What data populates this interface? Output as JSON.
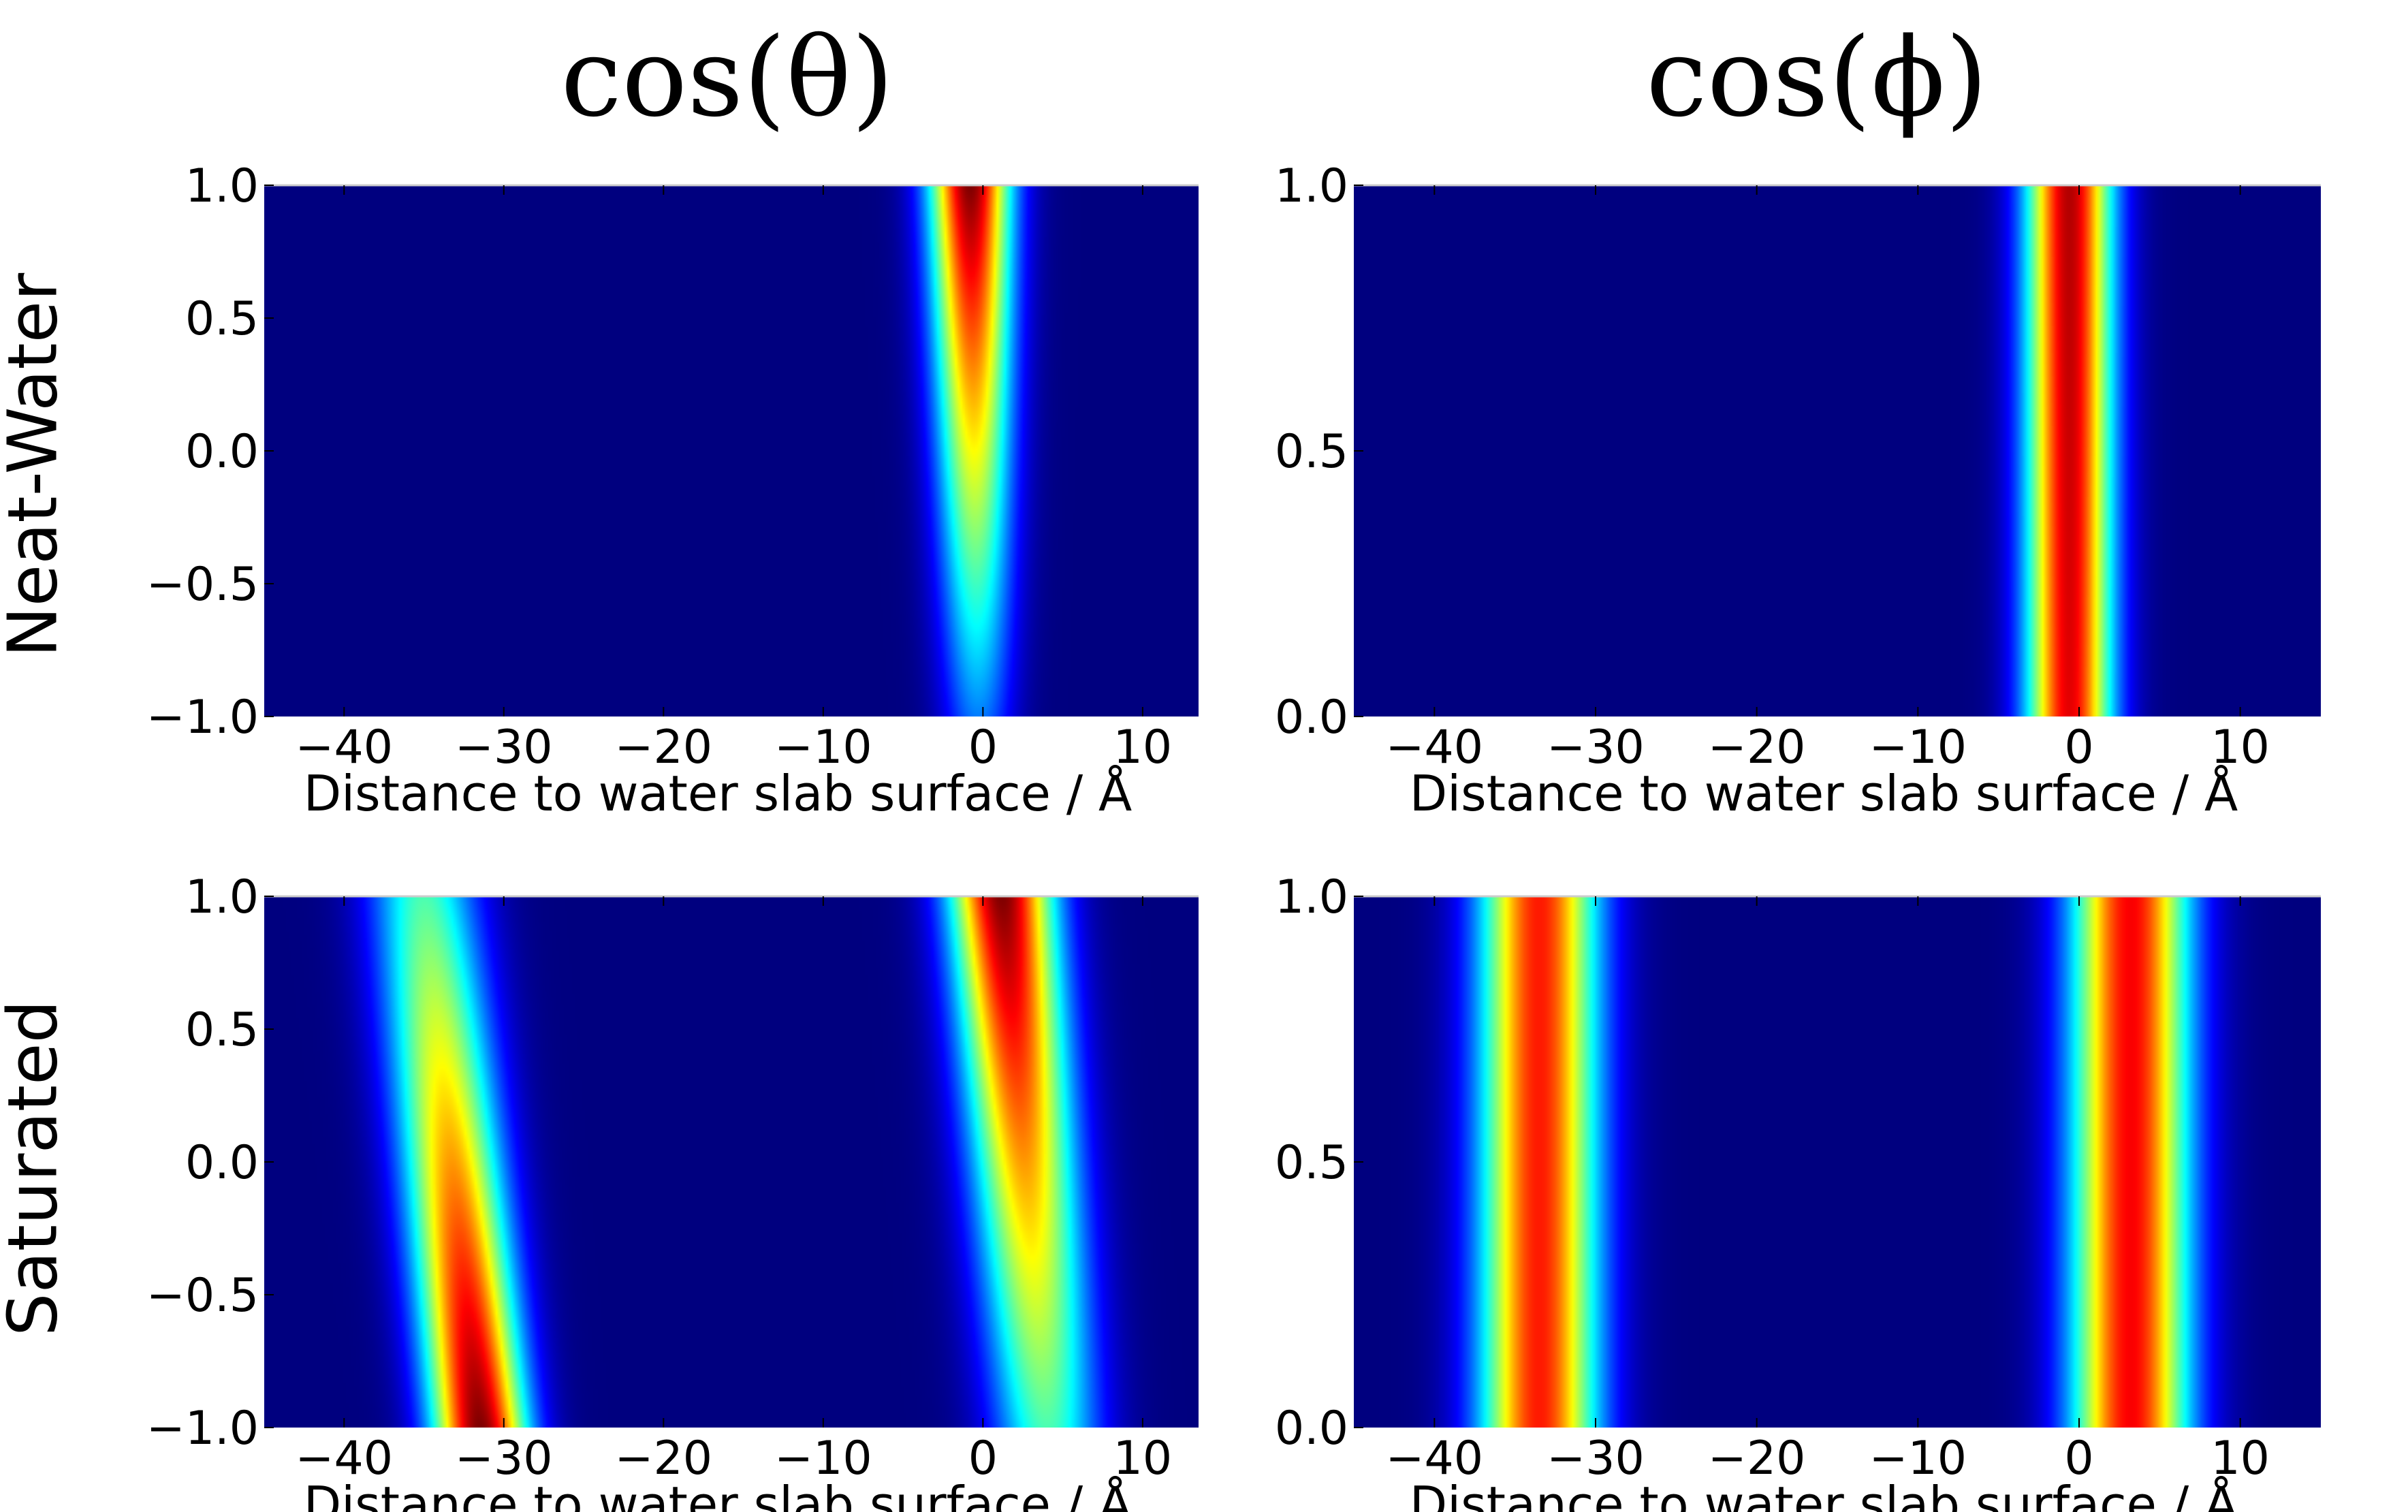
{
  "column_titles": [
    "cos(θ)",
    "cos(ϕ)"
  ],
  "row_labels": [
    "Neat-Water",
    "Saturated"
  ],
  "colormap": [
    "#00007f",
    "#0000ff",
    "#007fff",
    "#00ffff",
    "#7fff7f",
    "#ffff00",
    "#ff7f00",
    "#ff0000",
    "#7f0000"
  ],
  "chart_data": [
    {
      "type": "heatmap",
      "name": "neat-water-cos-theta",
      "xlabel": "Distance to water slab surface / Å",
      "ylabel": "",
      "xlim": [
        -45,
        13.5
      ],
      "ylim": [
        -1.0,
        1.0
      ],
      "xticks": [
        -40,
        -30,
        -20,
        -10,
        0,
        10
      ],
      "yticks": [
        -1.0,
        -0.5,
        0.0,
        0.5,
        1.0
      ],
      "xtick_labels": [
        "−40",
        "−30",
        "−20",
        "−10",
        "0",
        "10"
      ],
      "ytick_labels": [
        "−1.0",
        "−0.5",
        "0.0",
        "0.5",
        "1.0"
      ],
      "features": [
        {
          "x_center_top": -0.8,
          "x_center_bottom": -0.3,
          "width_top": 1.8,
          "width_bottom": 1.6,
          "intensity_top": 1.0,
          "intensity_bottom": 0.25
        }
      ]
    },
    {
      "type": "heatmap",
      "name": "neat-water-cos-phi",
      "xlabel": "Distance to water slab surface / Å",
      "ylabel": "",
      "xlim": [
        -45,
        15
      ],
      "ylim": [
        0.0,
        1.0
      ],
      "xticks": [
        -40,
        -30,
        -20,
        -10,
        0,
        10
      ],
      "yticks": [
        0.0,
        0.5,
        1.0
      ],
      "xtick_labels": [
        "−40",
        "−30",
        "−20",
        "−10",
        "0",
        "10"
      ],
      "ytick_labels": [
        "0.0",
        "0.5",
        "1.0"
      ],
      "features": [
        {
          "x_center_top": -0.6,
          "x_center_bottom": -0.6,
          "width_top": 1.9,
          "width_bottom": 1.9,
          "intensity_top": 0.95,
          "intensity_bottom": 0.9
        }
      ]
    },
    {
      "type": "heatmap",
      "name": "saturated-cos-theta",
      "xlabel": "Distance to water slab surface / Å",
      "ylabel": "",
      "xlim": [
        -45,
        13.5
      ],
      "ylim": [
        -1.0,
        1.0
      ],
      "xticks": [
        -40,
        -30,
        -20,
        -10,
        0,
        10
      ],
      "yticks": [
        -1.0,
        -0.5,
        0.0,
        0.5,
        1.0
      ],
      "xtick_labels": [
        "−40",
        "−30",
        "−20",
        "−10",
        "0",
        "10"
      ],
      "ytick_labels": [
        "−1.0",
        "−0.5",
        "0.0",
        "0.5",
        "1.0"
      ],
      "features": [
        {
          "x_center_top": -35.0,
          "x_center_bottom": -31.5,
          "width_top": 2.4,
          "width_bottom": 2.1,
          "intensity_top": 0.45,
          "intensity_bottom": 1.0
        },
        {
          "x_center_top": 1.2,
          "x_center_bottom": 4.0,
          "width_top": 2.3,
          "width_bottom": 2.4,
          "intensity_top": 1.0,
          "intensity_bottom": 0.45
        }
      ]
    },
    {
      "type": "heatmap",
      "name": "saturated-cos-phi",
      "xlabel": "Distance to water slab surface / Å",
      "ylabel": "",
      "xlim": [
        -45,
        15
      ],
      "ylim": [
        0.0,
        1.0
      ],
      "xticks": [
        -40,
        -30,
        -20,
        -10,
        0,
        10
      ],
      "yticks": [
        0.0,
        0.5,
        1.0
      ],
      "xtick_labels": [
        "−40",
        "−30",
        "−20",
        "−10",
        "0",
        "10"
      ],
      "ytick_labels": [
        "0.0",
        "0.5",
        "1.0"
      ],
      "features": [
        {
          "x_center_top": -33.5,
          "x_center_bottom": -33.5,
          "width_top": 2.6,
          "width_bottom": 2.6,
          "intensity_top": 0.85,
          "intensity_bottom": 0.85
        },
        {
          "x_center_top": 3.2,
          "x_center_bottom": 3.2,
          "width_top": 2.6,
          "width_bottom": 2.6,
          "intensity_top": 0.88,
          "intensity_bottom": 0.88
        }
      ]
    }
  ]
}
